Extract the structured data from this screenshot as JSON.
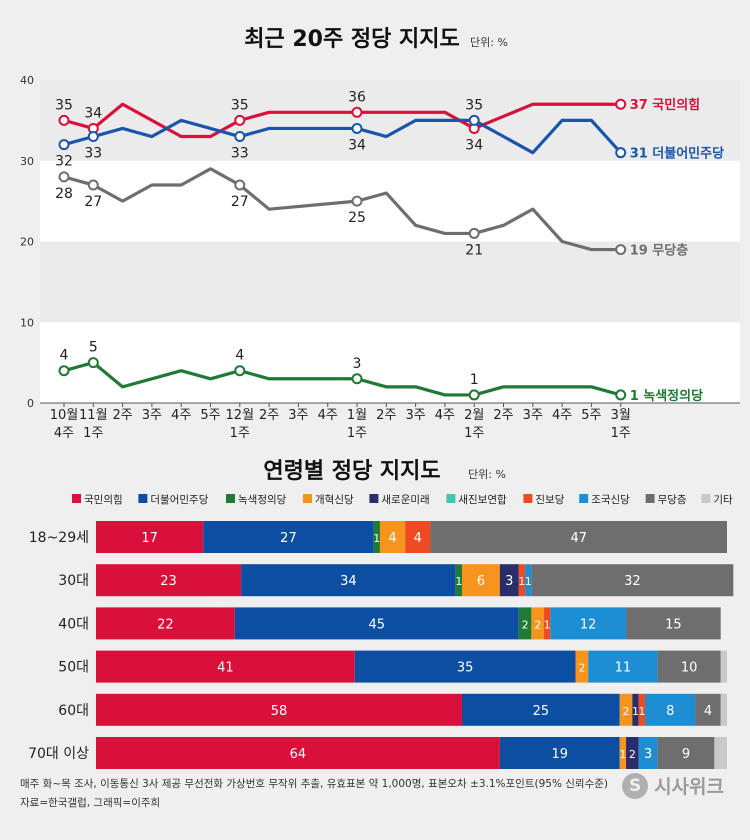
{
  "chart_data": [
    {
      "type": "line",
      "title": "최근 20주 정당 지지도",
      "unit_label": "단위: %",
      "ylim": [
        0,
        40
      ],
      "y_ticks": [
        "0",
        "10",
        "20",
        "30",
        "40"
      ],
      "x_ticks": [
        [
          "10월",
          "4주"
        ],
        [
          "11월",
          "1주"
        ],
        [
          "2주"
        ],
        [
          "3주"
        ],
        [
          "4주"
        ],
        [
          "5주"
        ],
        [
          "12월",
          "1주"
        ],
        [
          "2주"
        ],
        [
          "3주"
        ],
        [
          "4주"
        ],
        [
          "1월",
          "1주"
        ],
        [
          "2주"
        ],
        [
          "3주"
        ],
        [
          "4주"
        ],
        [
          "2월",
          "1주"
        ],
        [
          "2주"
        ],
        [
          "3주"
        ],
        [
          "4주"
        ],
        [
          "5주"
        ],
        [
          "3월",
          "1주"
        ]
      ],
      "series": [
        {
          "name": "국민의힘",
          "color": "#d9113a",
          "x": [
            0,
            1,
            2,
            3,
            4,
            5,
            6,
            7,
            10,
            13,
            14,
            16,
            19
          ],
          "values": [
            35,
            34,
            37,
            35,
            33,
            33,
            35,
            36,
            36,
            36,
            34,
            37,
            37
          ],
          "markers": [
            0,
            1,
            6,
            8,
            10,
            12
          ],
          "point_labels": [
            {
              "i": 0,
              "text": "35",
              "pos": "above"
            },
            {
              "i": 1,
              "text": "34",
              "pos": "above"
            },
            {
              "i": 6,
              "text": "35",
              "pos": "above"
            },
            {
              "i": 8,
              "text": "36",
              "pos": "above"
            },
            {
              "i": 10,
              "text": "34",
              "pos": "below"
            }
          ],
          "end_label": "37 국민의힘"
        },
        {
          "name": "더불어민주당",
          "color": "#1a55ad",
          "x": [
            0,
            1,
            2,
            3,
            4,
            5,
            6,
            7,
            10,
            11,
            12,
            13,
            14,
            15,
            16,
            17,
            18,
            19
          ],
          "values": [
            32,
            33,
            34,
            33,
            35,
            34,
            33,
            34,
            34,
            33,
            35,
            35,
            35,
            33,
            31,
            35,
            35,
            31
          ],
          "markers": [
            0,
            1,
            6,
            8,
            12,
            17
          ],
          "point_labels": [
            {
              "i": 0,
              "text": "32",
              "pos": "below"
            },
            {
              "i": 1,
              "text": "33",
              "pos": "below"
            },
            {
              "i": 6,
              "text": "33",
              "pos": "below"
            },
            {
              "i": 8,
              "text": "34",
              "pos": "below"
            },
            {
              "i": 12,
              "text": "35",
              "pos": "above"
            }
          ],
          "end_label": "31 더불어민주당"
        },
        {
          "name": "무당층",
          "color": "#6e6e6e",
          "x": [
            0,
            1,
            2,
            3,
            4,
            5,
            6,
            7,
            10,
            11,
            12,
            13,
            14,
            15,
            16,
            17,
            18,
            19
          ],
          "values": [
            28,
            27,
            25,
            27,
            27,
            29,
            27,
            24,
            25,
            26,
            22,
            21,
            21,
            22,
            24,
            20,
            19,
            19
          ],
          "markers": [
            0,
            1,
            6,
            8,
            12,
            17
          ],
          "point_labels": [
            {
              "i": 0,
              "text": "28",
              "pos": "below"
            },
            {
              "i": 1,
              "text": "27",
              "pos": "below"
            },
            {
              "i": 6,
              "text": "27",
              "pos": "below"
            },
            {
              "i": 8,
              "text": "25",
              "pos": "below"
            },
            {
              "i": 12,
              "text": "21",
              "pos": "below"
            }
          ],
          "end_label": "19 무당층"
        },
        {
          "name": "녹색정의당",
          "color": "#1e7a34",
          "x": [
            0,
            1,
            2,
            3,
            4,
            5,
            6,
            7,
            10,
            11,
            12,
            13,
            14,
            15,
            16,
            17,
            18,
            19
          ],
          "values": [
            4,
            5,
            2,
            3,
            4,
            3,
            4,
            3,
            3,
            2,
            2,
            1,
            1,
            2,
            2,
            2,
            2,
            1
          ],
          "markers": [
            0,
            1,
            6,
            8,
            12,
            17
          ],
          "point_labels": [
            {
              "i": 0,
              "text": "4",
              "pos": "above"
            },
            {
              "i": 1,
              "text": "5",
              "pos": "above"
            },
            {
              "i": 6,
              "text": "4",
              "pos": "above"
            },
            {
              "i": 8,
              "text": "3",
              "pos": "above"
            },
            {
              "i": 12,
              "text": "1",
              "pos": "above"
            }
          ],
          "end_label": "1 녹색정의당"
        }
      ]
    },
    {
      "type": "bar",
      "stacked": true,
      "orientation": "horizontal",
      "title": "연령별 정당 지지도",
      "unit_label": "단위: %",
      "legend": [
        {
          "name": "국민의힘",
          "color": "#d9113a"
        },
        {
          "name": "더불어민주당",
          "color": "#0b4ea2"
        },
        {
          "name": "녹색정의당",
          "color": "#1e7a34"
        },
        {
          "name": "개혁신당",
          "color": "#f7941d"
        },
        {
          "name": "새로운미래",
          "color": "#2b2c6c"
        },
        {
          "name": "새진보연합",
          "color": "#3ec7b4"
        },
        {
          "name": "진보당",
          "color": "#ef4b23"
        },
        {
          "name": "조국신당",
          "color": "#1e8ed4"
        },
        {
          "name": "무당층",
          "color": "#6e6e6e"
        },
        {
          "name": "기타",
          "color": "#c9c9c9"
        }
      ],
      "categories": [
        "18~29세",
        "30대",
        "40대",
        "50대",
        "60대",
        "70대 이상"
      ],
      "rows": [
        [
          17,
          27,
          1,
          4,
          0,
          0,
          4,
          0,
          47,
          0
        ],
        [
          23,
          34,
          1,
          6,
          3,
          0,
          1,
          1,
          32,
          0
        ],
        [
          22,
          45,
          2,
          2,
          0,
          0,
          1,
          12,
          15,
          0
        ],
        [
          41,
          35,
          0,
          2,
          0,
          0,
          0,
          11,
          10,
          1
        ],
        [
          58,
          25,
          0,
          2,
          1,
          0,
          1,
          8,
          4,
          1
        ],
        [
          64,
          19,
          0,
          1,
          2,
          0,
          0,
          3,
          9,
          2
        ]
      ],
      "value_labels": [
        [
          "17",
          "27",
          "1",
          "4",
          "",
          "",
          "4",
          "",
          "47",
          ""
        ],
        [
          "23",
          "34",
          "1",
          "6",
          "3",
          "",
          "1",
          "1",
          "32",
          ""
        ],
        [
          "22",
          "45",
          "2",
          "2",
          "",
          "",
          "1",
          "12",
          "15",
          ""
        ],
        [
          "41",
          "35",
          "",
          "2",
          "",
          "",
          "",
          "11",
          "10",
          ""
        ],
        [
          "58",
          "25",
          "",
          "2",
          "1",
          "",
          "1",
          "8",
          "4",
          ""
        ],
        [
          "64",
          "19",
          "",
          "1",
          "2",
          "",
          "",
          "3",
          "9",
          ""
        ]
      ]
    }
  ],
  "footer": {
    "note": "매주 화~목 조사, 이동통신 3사 제공 무선전화 가상번호 무작위 추출, 유효표본 약 1,000명, 표본오차 ±3.1%포인트(95% 신뢰수준)",
    "source": "자료=한국갤럽, 그래픽=이주희"
  },
  "brand": {
    "logo_mark": "S",
    "logo_text": "시사위크"
  }
}
